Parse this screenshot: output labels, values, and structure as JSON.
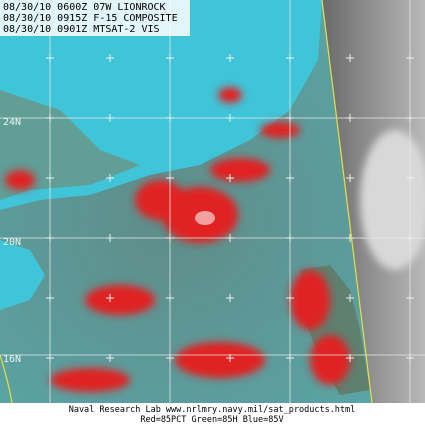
{
  "header": {
    "lines": [
      "08/30/10 0600Z 07W LIONROCK",
      "08/30/10 0915Z F-15 COMPOSITE",
      "08/30/10 0901Z MTSAT-2 VIS"
    ]
  },
  "latitude_labels": [
    "24N",
    "20N",
    "16N"
  ],
  "footer": {
    "source": "Naval Research Lab  www.nrlmry.navy.mil/sat_products.html",
    "legend": "Red=85PCT  Green=85H  Blue=85V"
  }
}
